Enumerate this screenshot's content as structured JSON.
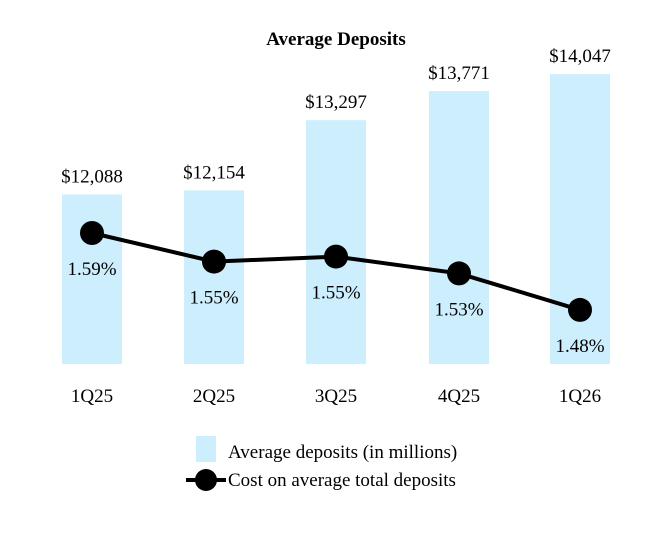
{
  "colors": {
    "bar": "#cdeefc",
    "line": "#000000",
    "marker": "#000000",
    "text": "#000000"
  },
  "chart_data": {
    "type": "bar",
    "title": "Average Deposits",
    "categories": [
      "1Q25",
      "2Q25",
      "3Q25",
      "4Q25",
      "1Q26"
    ],
    "series": [
      {
        "name": "Average deposits (in millions)",
        "type": "bar",
        "values": [
          12088,
          12154,
          13297,
          13771,
          14047
        ],
        "labels": [
          "$12,088",
          "$12,154",
          "$13,297",
          "$13,771",
          "$14,047"
        ]
      },
      {
        "name": "Cost on average total deposits",
        "type": "line",
        "values": [
          1.59,
          1.55,
          1.55,
          1.53,
          1.48
        ],
        "labels": [
          "1.59%",
          "1.55%",
          "1.55%",
          "1.53%",
          "1.48%"
        ]
      }
    ],
    "legend_position": "bottom-center",
    "grid": false
  }
}
